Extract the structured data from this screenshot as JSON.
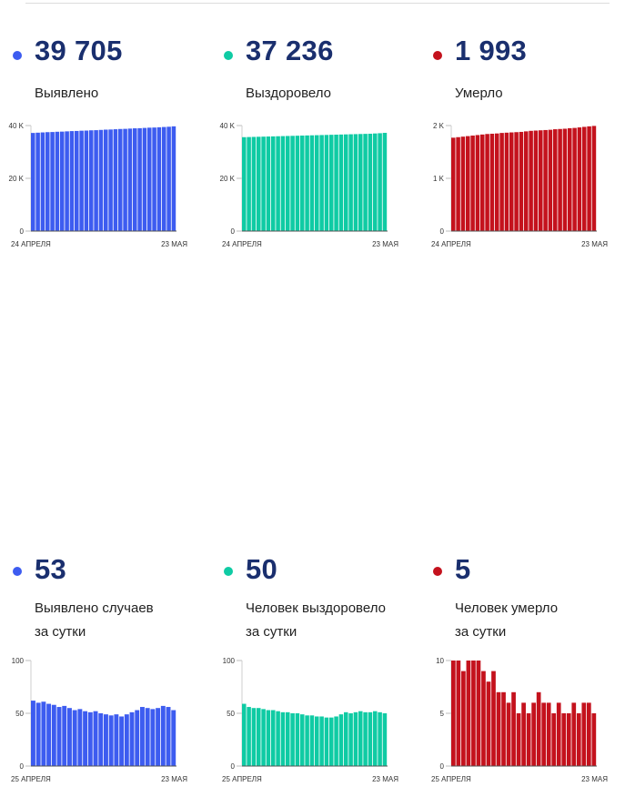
{
  "cards": [
    {
      "id": "detected",
      "value": "39 705",
      "label_lines": [
        "Выявлено"
      ],
      "color": "#3d5cf0",
      "chart_key": 0
    },
    {
      "id": "recovered",
      "value": "37 236",
      "label_lines": [
        "Выздоровело"
      ],
      "color": "#0fcba4",
      "chart_key": 1
    },
    {
      "id": "died",
      "value": "1 993",
      "label_lines": [
        "Умерло"
      ],
      "color": "#c4121d",
      "chart_key": 2
    },
    {
      "id": "daily-detected",
      "value": "53",
      "label_lines": [
        "Выявлено случаев",
        "за сутки"
      ],
      "color": "#3d5cf0",
      "chart_key": 3
    },
    {
      "id": "daily-recovered",
      "value": "50",
      "label_lines": [
        "Человек выздоровело",
        "за сутки"
      ],
      "color": "#0fcba4",
      "chart_key": 4
    },
    {
      "id": "daily-died",
      "value": "5",
      "label_lines": [
        "Человек умерло",
        "за сутки"
      ],
      "color": "#c4121d",
      "chart_key": 5
    }
  ],
  "chart_data": [
    {
      "type": "bar",
      "title": "",
      "x_start": "24 АПРЕЛЯ",
      "x_end": "23 МАЯ",
      "y_ticks": [
        "0",
        "20 K",
        "40 K"
      ],
      "ylim": [
        0,
        40000
      ],
      "values": [
        37200,
        37300,
        37400,
        37500,
        37550,
        37650,
        37700,
        37800,
        37900,
        37950,
        38050,
        38100,
        38200,
        38250,
        38350,
        38450,
        38500,
        38600,
        38700,
        38750,
        38850,
        38950,
        39000,
        39100,
        39200,
        39250,
        39350,
        39450,
        39550,
        39705
      ]
    },
    {
      "type": "bar",
      "title": "",
      "x_start": "24 АПРЕЛЯ",
      "x_end": "23 МАЯ",
      "y_ticks": [
        "0",
        "20 K",
        "40 K"
      ],
      "ylim": [
        0,
        40000
      ],
      "values": [
        35600,
        35650,
        35700,
        35750,
        35800,
        35850,
        35900,
        35950,
        36000,
        36050,
        36100,
        36150,
        36200,
        36250,
        36300,
        36350,
        36400,
        36450,
        36500,
        36550,
        36600,
        36650,
        36700,
        36750,
        36800,
        36850,
        36900,
        37000,
        37100,
        37236
      ]
    },
    {
      "type": "bar",
      "title": "",
      "x_start": "24 АПРЕЛЯ",
      "x_end": "23 МАЯ",
      "y_ticks": [
        "0",
        "1 K",
        "2 K"
      ],
      "ylim": [
        0,
        2000
      ],
      "values": [
        1770,
        1780,
        1790,
        1800,
        1810,
        1820,
        1830,
        1840,
        1845,
        1850,
        1860,
        1865,
        1870,
        1875,
        1880,
        1890,
        1900,
        1905,
        1910,
        1915,
        1920,
        1930,
        1935,
        1940,
        1950,
        1955,
        1965,
        1975,
        1985,
        1993
      ]
    },
    {
      "type": "bar",
      "title": "",
      "x_start": "25 АПРЕЛЯ",
      "x_end": "23 МАЯ",
      "y_ticks": [
        "0",
        "50",
        "100"
      ],
      "ylim": [
        0,
        100
      ],
      "values": [
        62,
        60,
        61,
        59,
        58,
        56,
        57,
        55,
        53,
        54,
        52,
        51,
        52,
        50,
        49,
        48,
        49,
        47,
        49,
        51,
        53,
        56,
        55,
        54,
        55,
        57,
        56,
        53
      ]
    },
    {
      "type": "bar",
      "title": "",
      "x_start": "25 АПРЕЛЯ",
      "x_end": "23 МАЯ",
      "y_ticks": [
        "0",
        "50",
        "100"
      ],
      "ylim": [
        0,
        100
      ],
      "values": [
        59,
        56,
        55,
        55,
        54,
        53,
        53,
        52,
        51,
        51,
        50,
        50,
        49,
        48,
        48,
        47,
        47,
        46,
        46,
        47,
        49,
        51,
        50,
        51,
        52,
        51,
        51,
        52,
        51,
        50
      ]
    },
    {
      "type": "bar",
      "title": "",
      "x_start": "25 АПРЕЛЯ",
      "x_end": "23 МАЯ",
      "y_ticks": [
        "0",
        "5",
        "10"
      ],
      "ylim": [
        0,
        10
      ],
      "values": [
        10,
        10,
        9,
        10,
        10,
        10,
        9,
        8,
        9,
        7,
        7,
        6,
        7,
        5,
        6,
        5,
        6,
        7,
        6,
        6,
        5,
        6,
        5,
        5,
        6,
        5,
        6,
        6,
        5
      ]
    }
  ]
}
